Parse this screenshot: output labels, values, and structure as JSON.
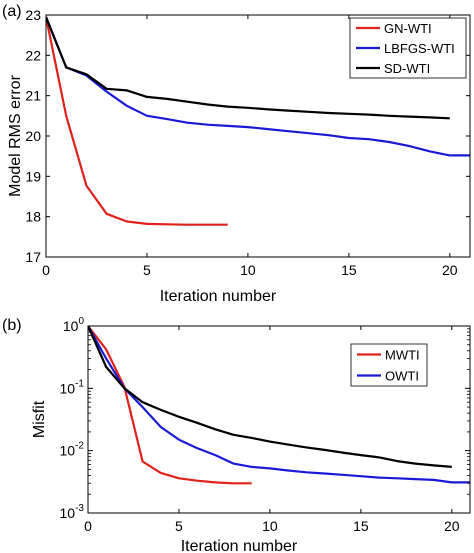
{
  "chart_data": [
    {
      "type": "line",
      "panel_label": "(a)",
      "xlabel": "Iteration number",
      "ylabel": "Model RMS error",
      "xlim": [
        0,
        21
      ],
      "ylim": [
        17,
        23
      ],
      "yscale": "linear",
      "xticks": [
        "0",
        "5",
        "10",
        "15",
        "20"
      ],
      "yticks": [
        "17",
        "18",
        "19",
        "20",
        "21",
        "22",
        "23"
      ],
      "legend_position": "top-right",
      "series": [
        {
          "name": "GN-WTI",
          "color": "#e0201b",
          "x": [
            0,
            1,
            2,
            3,
            4,
            5,
            6,
            7,
            8,
            9
          ],
          "y": [
            22.95,
            20.5,
            18.77,
            18.07,
            17.88,
            17.82,
            17.81,
            17.8,
            17.8,
            17.8
          ]
        },
        {
          "name": "LBFGS-WTI",
          "color": "#1a1ad6",
          "x": [
            0,
            1,
            2,
            3,
            4,
            5,
            6,
            7,
            8,
            9,
            10,
            11,
            12,
            13,
            14,
            15,
            16,
            17,
            18,
            19,
            20,
            21
          ],
          "y": [
            22.95,
            21.7,
            21.5,
            21.1,
            20.75,
            20.5,
            20.42,
            20.33,
            20.28,
            20.25,
            20.22,
            20.17,
            20.12,
            20.07,
            20.02,
            19.95,
            19.92,
            19.85,
            19.75,
            19.62,
            19.52,
            19.52
          ]
        },
        {
          "name": "SD-WTI",
          "color": "#000000",
          "x": [
            0,
            1,
            2,
            3,
            4,
            5,
            6,
            7,
            8,
            9,
            10,
            11,
            12,
            13,
            14,
            15,
            16,
            17,
            18,
            19,
            20
          ],
          "y": [
            22.95,
            21.7,
            21.53,
            21.17,
            21.13,
            20.97,
            20.92,
            20.85,
            20.78,
            20.73,
            20.7,
            20.66,
            20.63,
            20.6,
            20.57,
            20.55,
            20.53,
            20.5,
            20.48,
            20.46,
            20.44
          ]
        }
      ]
    },
    {
      "type": "line",
      "panel_label": "(b)",
      "xlabel": "Iteration number",
      "ylabel": "Misfit",
      "xlim": [
        0,
        21
      ],
      "ylim": [
        0.001,
        1
      ],
      "yscale": "log",
      "xticks": [
        "0",
        "5",
        "10",
        "15",
        "20"
      ],
      "yticks": [
        {
          "base": "10",
          "exp": "0"
        },
        {
          "base": "10",
          "exp": "-1"
        },
        {
          "base": "10",
          "exp": "-2"
        },
        {
          "base": "10",
          "exp": "-3"
        }
      ],
      "legend_position": "top-right",
      "series": [
        {
          "name": "MWTI",
          "color": "#e0201b",
          "x": [
            0,
            1,
            2,
            3,
            4,
            5,
            6,
            7,
            8,
            9
          ],
          "y": [
            1.0,
            0.42,
            0.105,
            0.0067,
            0.0044,
            0.0036,
            0.0033,
            0.0031,
            0.003,
            0.003
          ]
        },
        {
          "name": "OWTI",
          "color": "#1a1ad6",
          "x": [
            0,
            1,
            2,
            3,
            4,
            5,
            6,
            7,
            8,
            9,
            10,
            11,
            12,
            13,
            14,
            15,
            16,
            17,
            18,
            19,
            20,
            21
          ],
          "y": [
            1.0,
            0.3,
            0.1,
            0.05,
            0.024,
            0.015,
            0.011,
            0.0085,
            0.0062,
            0.0055,
            0.0052,
            0.0048,
            0.0045,
            0.0043,
            0.0041,
            0.0039,
            0.0037,
            0.0036,
            0.0035,
            0.0034,
            0.0031,
            0.0031
          ]
        },
        {
          "name": "",
          "color": "#000000",
          "x": [
            0,
            1,
            2,
            3,
            4,
            5,
            6,
            7,
            8,
            9,
            10,
            11,
            12,
            13,
            14,
            15,
            16,
            17,
            18,
            19,
            20
          ],
          "y": [
            1.0,
            0.22,
            0.1,
            0.06,
            0.045,
            0.035,
            0.028,
            0.022,
            0.018,
            0.016,
            0.014,
            0.0125,
            0.0113,
            0.0103,
            0.0093,
            0.0085,
            0.0078,
            0.0068,
            0.0062,
            0.0058,
            0.0055
          ]
        }
      ]
    }
  ]
}
